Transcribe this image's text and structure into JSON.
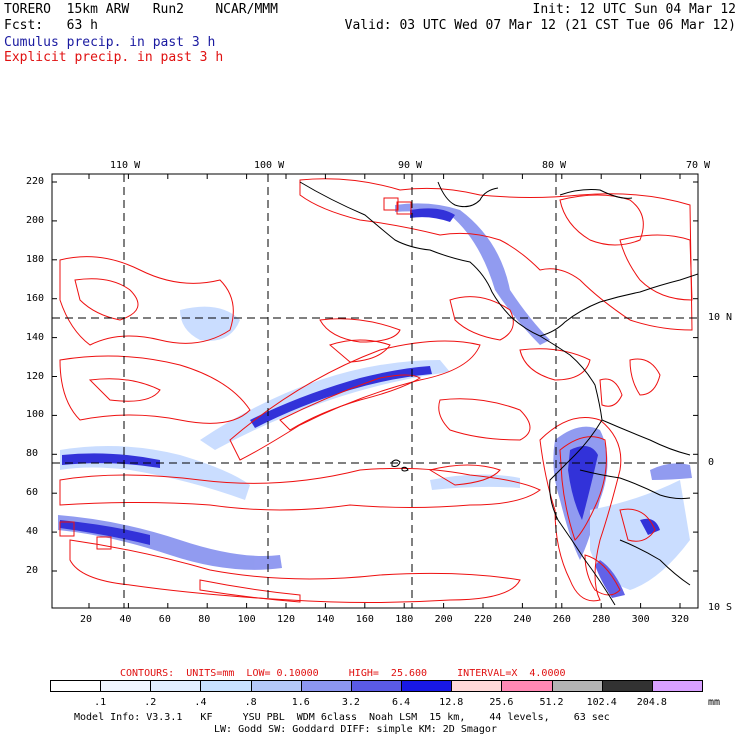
{
  "header": {
    "line1_left": "TORERO  15km ARW   Run2    NCAR/MMM",
    "line1_right": "Init: 12 UTC Sun 04 Mar 12",
    "line2_left": "Fcst:   63 h",
    "line2_right": "Valid: 03 UTC Wed 07 Mar 12 (21 CST Tue 06 Mar 12)",
    "line3": "Cumulus precip. in past 3 h",
    "line4": "Explicit precip. in past 3 h"
  },
  "map": {
    "lon_labels": [
      "110 W",
      "100 W",
      "90 W",
      "80 W",
      "70 W"
    ],
    "lat_labels_right": [
      "10 N",
      "0",
      "10 S"
    ],
    "y_ticks": [
      "220",
      "200",
      "180",
      "160",
      "140",
      "120",
      "100",
      "80",
      "60",
      "40",
      "20"
    ],
    "x_ticks": [
      "20",
      "40",
      "60",
      "80",
      "100",
      "120",
      "140",
      "160",
      "180",
      "200",
      "220",
      "240",
      "260",
      "280",
      "300",
      "320"
    ],
    "colors": {
      "cumulus_light": "#c8dcff",
      "cumulus_mid": "#8c96f0",
      "cumulus_dark": "#2828d8",
      "explicit_contour": "#ee1010",
      "coastline": "#000000"
    }
  },
  "contour_info": {
    "label": "CONTOURS:  UNITS=mm  LOW= 0.10000     HIGH=  25.600     INTERVAL=X  4.0000"
  },
  "legend": {
    "unit": "mm",
    "thresholds": [
      ".1",
      ".2",
      ".4",
      ".8",
      "1.6",
      "3.2",
      "6.4",
      "12.8",
      "25.6",
      "51.2",
      "102.4",
      "204.8"
    ],
    "colors": [
      "#ffffff",
      "#f0f6ff",
      "#e2efff",
      "#c8e2ff",
      "#b4c8f8",
      "#8c96f0",
      "#5a5ae6",
      "#1818e6",
      "#ffd8d8",
      "#ff88b4",
      "#b4b4b4",
      "#323232",
      "#d8a0ff"
    ]
  },
  "footer": {
    "line1": "Model Info: V3.3.1   KF     YSU PBL  WDM 6class  Noah LSM  15 km,    44 levels,    63 sec",
    "line2": "LW: Godd SW: Goddard DIFF: simple KM: 2D Smagor"
  }
}
